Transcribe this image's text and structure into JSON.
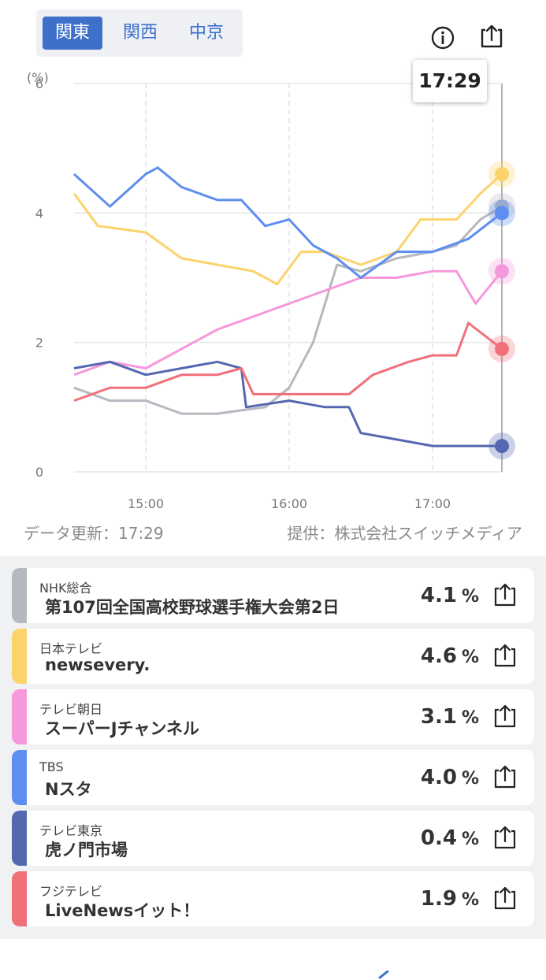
{
  "tabs": [
    {
      "label": "関東",
      "active": true
    },
    {
      "label": "関西",
      "active": false
    },
    {
      "label": "中京",
      "active": false
    }
  ],
  "icons": {
    "info": "info-icon",
    "share": "share-icon"
  },
  "time_bubble": "17:29",
  "chart_data": {
    "type": "line",
    "unit_label": "(%)",
    "x_ticks": [
      "15:00",
      "16:00",
      "17:00"
    ],
    "x_range": [
      "14:30",
      "17:29"
    ],
    "y_ticks": [
      "0",
      "2",
      "4",
      "6"
    ],
    "ylim": [
      0,
      6
    ],
    "grid": "horizontal solid, vertical dashed",
    "series": [
      {
        "name": "NHK総合",
        "color": "#b6b8bf",
        "x": [
          "14:30",
          "14:45",
          "15:00",
          "15:15",
          "15:30",
          "15:40",
          "15:50",
          "16:00",
          "16:10",
          "16:20",
          "16:30",
          "16:45",
          "17:00",
          "17:10",
          "17:20",
          "17:29"
        ],
        "y": [
          1.3,
          1.1,
          1.1,
          0.9,
          0.9,
          0.95,
          1.0,
          1.3,
          2.0,
          3.2,
          3.1,
          3.3,
          3.4,
          3.5,
          3.9,
          4.1
        ]
      },
      {
        "name": "日本テレビ",
        "color": "#fbd36a",
        "x": [
          "14:30",
          "14:40",
          "15:00",
          "15:15",
          "15:30",
          "15:45",
          "15:55",
          "16:05",
          "16:15",
          "16:30",
          "16:45",
          "16:55",
          "17:10",
          "17:20",
          "17:29"
        ],
        "y": [
          4.3,
          3.8,
          3.7,
          3.3,
          3.2,
          3.1,
          2.9,
          3.4,
          3.4,
          3.2,
          3.4,
          3.9,
          3.9,
          4.3,
          4.6
        ]
      },
      {
        "name": "テレビ朝日",
        "color": "#f598dc",
        "x": [
          "14:30",
          "14:45",
          "15:00",
          "15:15",
          "15:30",
          "15:45",
          "16:00",
          "16:15",
          "16:30",
          "16:45",
          "17:00",
          "17:10",
          "17:18",
          "17:29"
        ],
        "y": [
          1.5,
          1.7,
          1.6,
          1.9,
          2.2,
          2.4,
          2.6,
          2.8,
          3.0,
          3.0,
          3.1,
          3.1,
          2.6,
          3.1
        ]
      },
      {
        "name": "TBS",
        "color": "#5d8ef0",
        "x": [
          "14:30",
          "14:45",
          "15:00",
          "15:05",
          "15:15",
          "15:30",
          "15:40",
          "15:50",
          "16:00",
          "16:10",
          "16:20",
          "16:30",
          "16:45",
          "17:00",
          "17:15",
          "17:29"
        ],
        "y": [
          4.6,
          4.1,
          4.6,
          4.7,
          4.4,
          4.2,
          4.2,
          3.8,
          3.9,
          3.5,
          3.3,
          3.0,
          3.4,
          3.4,
          3.6,
          4.0
        ]
      },
      {
        "name": "テレビ東京",
        "color": "#5468b0",
        "x": [
          "14:30",
          "14:45",
          "15:00",
          "15:15",
          "15:30",
          "15:40",
          "15:42",
          "16:00",
          "16:15",
          "16:25",
          "16:30",
          "16:45",
          "17:00",
          "17:10",
          "17:29"
        ],
        "y": [
          1.6,
          1.7,
          1.5,
          1.6,
          1.7,
          1.6,
          1.0,
          1.1,
          1.0,
          1.0,
          0.6,
          0.5,
          0.4,
          0.4,
          0.4
        ]
      },
      {
        "name": "フジテレビ",
        "color": "#f0707a",
        "x": [
          "14:30",
          "14:45",
          "15:00",
          "15:15",
          "15:30",
          "15:40",
          "15:45",
          "16:00",
          "16:15",
          "16:25",
          "16:35",
          "16:50",
          "17:00",
          "17:10",
          "17:15",
          "17:29"
        ],
        "y": [
          1.1,
          1.3,
          1.3,
          1.5,
          1.5,
          1.6,
          1.2,
          1.2,
          1.2,
          1.2,
          1.5,
          1.7,
          1.8,
          1.8,
          2.3,
          1.9
        ]
      }
    ]
  },
  "meta": {
    "updated": "データ更新：17:29",
    "provider": "提供：株式会社スイッチメディア"
  },
  "channels": [
    {
      "channel": "NHK総合",
      "program": "第107回全国高校野球選手権大会第2日",
      "rate": "4.1",
      "unit": "%",
      "color": "#b6b8bf"
    },
    {
      "channel": "日本テレビ",
      "program": "newsevery.",
      "rate": "4.6",
      "unit": "%",
      "color": "#fbd36a"
    },
    {
      "channel": "テレビ朝日",
      "program": "スーパーJチャンネル",
      "rate": "3.1",
      "unit": "%",
      "color": "#f598dc"
    },
    {
      "channel": "TBS",
      "program": "Nスタ",
      "rate": "4.0",
      "unit": "%",
      "color": "#5d8ef0"
    },
    {
      "channel": "テレビ東京",
      "program": "虎ノ門市場",
      "rate": "0.4",
      "unit": "%",
      "color": "#5468b0"
    },
    {
      "channel": "フジテレビ",
      "program": "LiveNewsイット！",
      "rate": "1.9",
      "unit": "%",
      "color": "#f0707a"
    }
  ]
}
